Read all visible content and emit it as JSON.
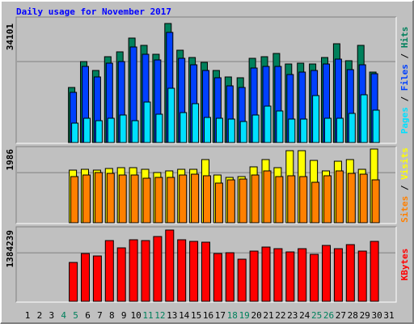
{
  "chart_data": [
    {
      "type": "bar",
      "title": "Daily usage for November 2017",
      "title_color": "#0000ff",
      "categories": [
        "1",
        "2",
        "3",
        "4",
        "5",
        "6",
        "7",
        "8",
        "9",
        "10",
        "11",
        "12",
        "13",
        "14",
        "15",
        "16",
        "17",
        "18",
        "19",
        "20",
        "21",
        "22",
        "23",
        "24",
        "25",
        "26",
        "27",
        "28",
        "29",
        "30",
        "31"
      ],
      "highlight": [
        3,
        4,
        10,
        11,
        17,
        18,
        24,
        25
      ],
      "highlight_color": "#00805c",
      "label_color": "#000000",
      "legend_separator": " / ",
      "ylim": [
        0,
        34101
      ],
      "yticks": [
        34101
      ],
      "series": [
        {
          "name": "Hits",
          "color": "#00805c",
          "values": [
            null,
            null,
            null,
            null,
            15776,
            23200,
            20648,
            24592,
            25984,
            29928,
            27840,
            25288,
            34101,
            26448,
            24360,
            22968,
            20648,
            18792,
            18560,
            24128,
            24592,
            25520,
            22504,
            22736,
            22504,
            24360,
            28304,
            23432,
            27840,
            20184,
            null
          ]
        },
        {
          "name": "Files",
          "color": "#0040ff",
          "values": [
            null,
            null,
            null,
            null,
            14384,
            21808,
            18792,
            22736,
            23200,
            27376,
            25288,
            23664,
            31552,
            24128,
            22272,
            20648,
            18560,
            16240,
            15776,
            21344,
            21808,
            21808,
            19488,
            20184,
            20648,
            22504,
            23896,
            20880,
            22272,
            19720,
            null
          ]
        },
        {
          "name": "Pages",
          "color": "#00e0ff",
          "values": [
            null,
            null,
            null,
            null,
            5568,
            6960,
            6264,
            6960,
            7888,
            6264,
            11600,
            8120,
            15544,
            8584,
            11136,
            7192,
            6960,
            6728,
            6032,
            7888,
            10440,
            9048,
            6728,
            6728,
            13456,
            6960,
            6960,
            8352,
            13688,
            9280,
            null
          ]
        }
      ]
    },
    {
      "type": "bar",
      "ylim": [
        0,
        1986
      ],
      "yticks": [
        1986
      ],
      "series": [
        {
          "name": "Visits",
          "color": "#ffff00",
          "values": [
            null,
            null,
            null,
            null,
            1418,
            1440,
            1418,
            1462,
            1484,
            1484,
            1440,
            1353,
            1397,
            1440,
            1440,
            1702,
            1287,
            1222,
            1244,
            1506,
            1702,
            1484,
            1942,
            1942,
            1680,
            1397,
            1658,
            1702,
            1440,
            1986,
            null
          ]
        },
        {
          "name": "Sites",
          "color": "#ff8000",
          "values": [
            null,
            null,
            null,
            null,
            1244,
            1287,
            1353,
            1331,
            1287,
            1287,
            1200,
            1222,
            1222,
            1287,
            1309,
            1266,
            1069,
            1156,
            1178,
            1287,
            1397,
            1244,
            1266,
            1244,
            1091,
            1266,
            1397,
            1331,
            1309,
            1156,
            null
          ]
        }
      ]
    },
    {
      "type": "bar",
      "ylim": [
        0,
        1384239
      ],
      "yticks": [
        1384239
      ],
      "series": [
        {
          "name": "KBytes",
          "color": "#ff0000",
          "values": [
            null,
            null,
            null,
            null,
            755040,
            928070,
            880880,
            1179750,
            1038180,
            1195480,
            1179750,
            1258400,
            1384239,
            1195480,
            1164020,
            1148290,
            928070,
            943800,
            817960,
            975260,
            1053910,
            1022450,
            959530,
            1022450,
            912340,
            1085370,
            1022450,
            1101100,
            975260,
            1164020,
            null
          ]
        }
      ]
    }
  ]
}
